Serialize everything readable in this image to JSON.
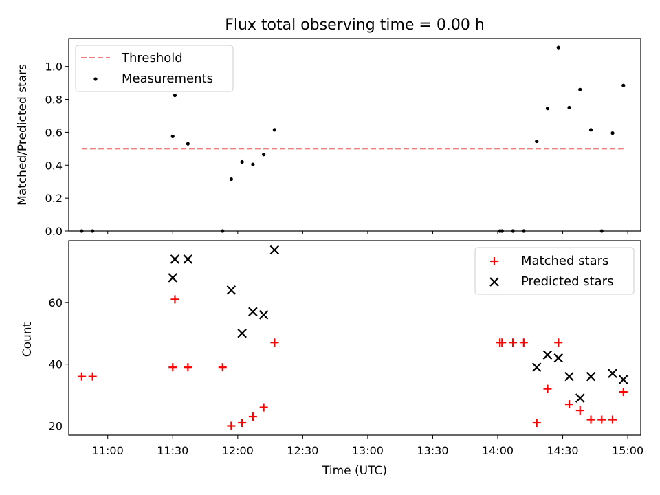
{
  "chart_data": [
    {
      "type": "scatter",
      "title": "Flux total observing time = 0.00 h",
      "xlabel": "",
      "ylabel": "Matched/Predicted stars",
      "ylim": [
        0,
        1.17
      ],
      "yticks": [
        "0.0",
        "0.2",
        "0.4",
        "0.6",
        "0.8",
        "1.0"
      ],
      "ytick_values": [
        0,
        0.2,
        0.4,
        0.6,
        0.8,
        1.0
      ],
      "legend_position": "top-left",
      "threshold": {
        "name": "Threshold",
        "value": 0.5,
        "x_range": [
          "10:48",
          "14:58"
        ],
        "color": "#f08080",
        "style": "dashed"
      },
      "series": [
        {
          "name": "Measurements",
          "color": "#000000",
          "marker": "dot",
          "x": [
            "10:48",
            "10:53",
            "11:30",
            "11:31",
            "11:37",
            "11:53",
            "11:57",
            "12:02",
            "12:07",
            "12:12",
            "12:17",
            "14:01",
            "14:02",
            "14:07",
            "14:12",
            "14:18",
            "14:23",
            "14:28",
            "14:33",
            "14:38",
            "14:43",
            "14:48",
            "14:53",
            "14:58"
          ],
          "y": [
            0.0,
            0.0,
            0.575,
            0.825,
            0.53,
            0.0,
            0.315,
            0.42,
            0.405,
            0.465,
            0.615,
            0.0,
            0.0,
            0.0,
            0.0,
            0.545,
            0.745,
            1.115,
            0.75,
            0.86,
            0.615,
            0.0,
            0.595,
            0.885
          ]
        }
      ]
    },
    {
      "type": "scatter",
      "title": "",
      "xlabel": "Time (UTC)",
      "ylabel": "Count",
      "ylim": [
        17,
        80
      ],
      "yticks": [
        "20",
        "40",
        "60"
      ],
      "ytick_values": [
        20,
        40,
        60
      ],
      "xlim": [
        "10:42",
        "15:06"
      ],
      "xticks": [
        "11:00",
        "11:30",
        "12:00",
        "12:30",
        "13:00",
        "13:30",
        "14:00",
        "14:30",
        "15:00"
      ],
      "legend_position": "top-right",
      "series": [
        {
          "name": "Matched stars",
          "color": "#ff0000",
          "marker": "plus",
          "x": [
            "10:48",
            "10:53",
            "11:30",
            "11:31",
            "11:37",
            "11:53",
            "11:57",
            "12:02",
            "12:07",
            "12:12",
            "12:17",
            "14:01",
            "14:02",
            "14:07",
            "14:12",
            "14:18",
            "14:23",
            "14:28",
            "14:33",
            "14:38",
            "14:43",
            "14:48",
            "14:53",
            "14:58"
          ],
          "y": [
            36,
            36,
            39,
            61,
            39,
            39,
            20,
            21,
            23,
            26,
            47,
            47,
            47,
            47,
            47,
            21,
            32,
            47,
            27,
            25,
            22,
            22,
            22,
            31
          ]
        },
        {
          "name": "Predicted stars",
          "color": "#000000",
          "marker": "x",
          "x": [
            "11:30",
            "11:31",
            "11:37",
            "11:57",
            "12:02",
            "12:07",
            "12:12",
            "12:17",
            "14:18",
            "14:23",
            "14:28",
            "14:33",
            "14:38",
            "14:43",
            "14:53",
            "14:58"
          ],
          "y": [
            68,
            74,
            74,
            64,
            50,
            57,
            56,
            77,
            39,
            43,
            42,
            36,
            29,
            36,
            37,
            35
          ]
        }
      ]
    }
  ]
}
